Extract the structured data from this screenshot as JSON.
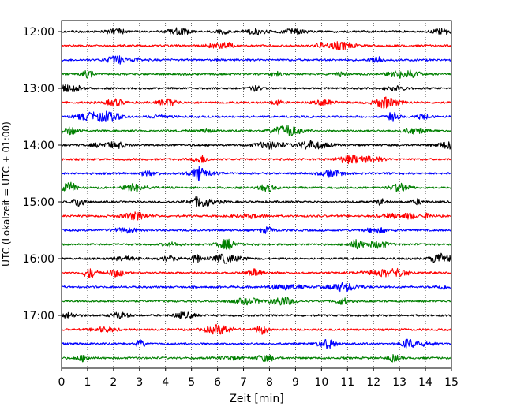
{
  "chart_data": {
    "type": "line",
    "title": "",
    "xlabel": "Zeit  [min]",
    "ylabel": "UTC (Lokalzeit = UTC + 01:00)",
    "xlim": [
      0,
      15
    ],
    "x_ticks": [
      "0",
      "1",
      "2",
      "3",
      "4",
      "5",
      "6",
      "7",
      "8",
      "9",
      "10",
      "11",
      "12",
      "13",
      "14",
      "15"
    ],
    "y_ticks": [
      "12:00",
      "13:00",
      "14:00",
      "15:00",
      "16:00",
      "17:00"
    ],
    "trace_start_times": [
      "12:00",
      "12:15",
      "12:30",
      "12:45",
      "13:00",
      "13:15",
      "13:30",
      "13:45",
      "14:00",
      "14:15",
      "14:30",
      "14:45",
      "15:00",
      "15:15",
      "15:30",
      "15:45",
      "16:00",
      "16:15",
      "16:30",
      "16:45",
      "17:00",
      "17:15",
      "17:30",
      "17:45"
    ],
    "trace_colors": [
      "#000000",
      "#ff0000",
      "#0000ff",
      "#008000"
    ],
    "grid": "vertical dotted at each minute",
    "legend": "none"
  }
}
